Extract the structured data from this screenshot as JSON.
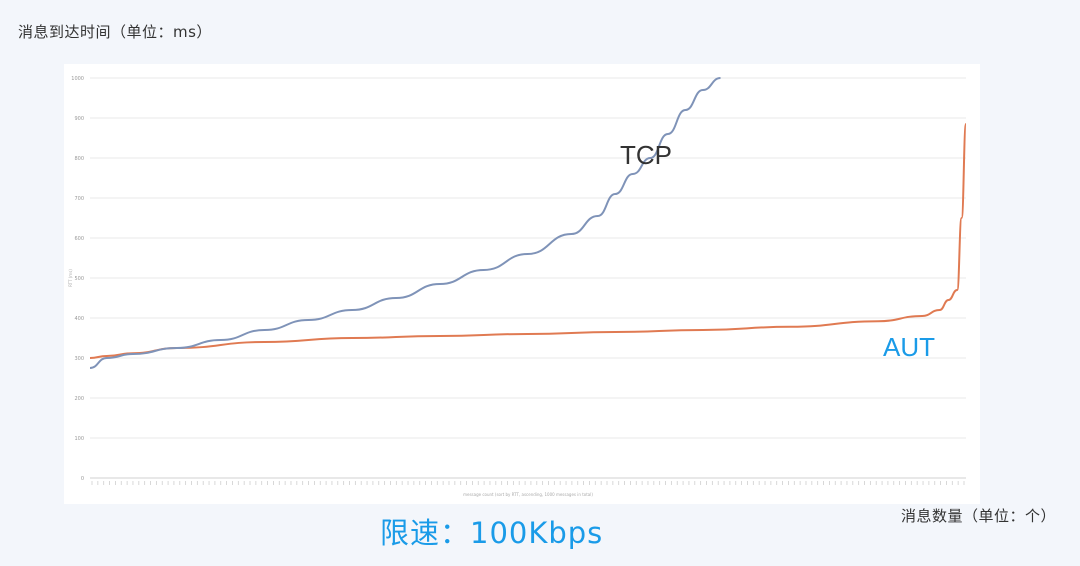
{
  "y_unit_label": "消息到达时间（单位：ms）",
  "x_unit_label": "消息数量（单位：个）",
  "caption": "限速：100Kbps",
  "colors": {
    "tcp": "#7f93b8",
    "aut": "#e07a52",
    "accent": "#1a9be8"
  },
  "chart_data": {
    "type": "line",
    "title": "",
    "xlabel": "message count (sort by RTT, ascending, 1000 messages in total)",
    "ylabel": "RTT (ms)",
    "ylim": [
      0,
      1000
    ],
    "yticks": [
      0,
      100,
      200,
      300,
      400,
      500,
      600,
      700,
      800,
      900,
      1000
    ],
    "grid": true,
    "legend": "none",
    "series": [
      {
        "name": "TCP",
        "x": [
          1,
          20,
          50,
          100,
          150,
          200,
          250,
          300,
          350,
          400,
          450,
          500,
          550,
          580,
          600,
          620,
          640,
          660,
          680,
          700,
          720
        ],
        "values": [
          275,
          300,
          310,
          325,
          345,
          370,
          395,
          420,
          450,
          485,
          520,
          560,
          610,
          655,
          710,
          760,
          800,
          860,
          920,
          970,
          1000
        ]
      },
      {
        "name": "AUT",
        "x": [
          1,
          20,
          50,
          100,
          200,
          300,
          400,
          500,
          600,
          700,
          800,
          900,
          950,
          970,
          980,
          990,
          995,
          1000
        ],
        "values": [
          300,
          305,
          312,
          325,
          340,
          350,
          355,
          360,
          365,
          370,
          378,
          392,
          405,
          420,
          445,
          470,
          650,
          885
        ]
      }
    ]
  }
}
